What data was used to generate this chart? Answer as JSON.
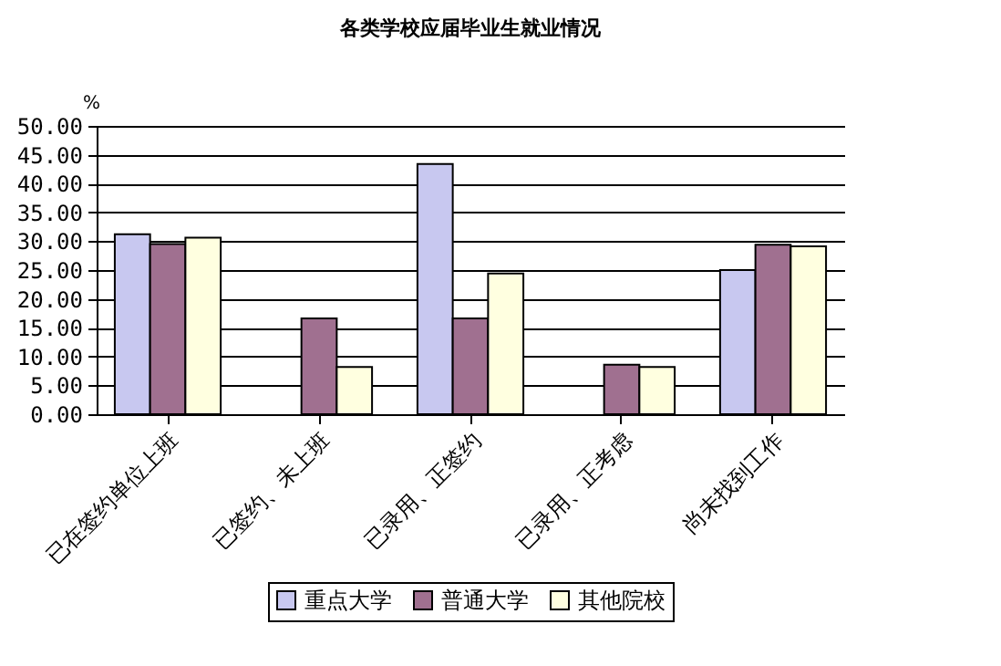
{
  "chart_data": {
    "type": "bar",
    "title": "各类学校应届毕业生就业情况",
    "ylabel": "%",
    "categories": [
      "已在签约单位上班",
      "已签约、未上班",
      "已录用、正签约",
      "已录用、正考虑",
      "尚未找到工作"
    ],
    "series": [
      {
        "name": "重点大学",
        "color": "#c8c8f0",
        "values": [
          31.2,
          null,
          43.4,
          null,
          25.0
        ]
      },
      {
        "name": "普通大学",
        "color": "#a07090",
        "values": [
          29.5,
          16.6,
          16.6,
          8.6,
          29.4
        ]
      },
      {
        "name": "其他院校",
        "color": "#ffffe0",
        "values": [
          30.6,
          8.2,
          24.4,
          8.2,
          29.1
        ]
      }
    ],
    "ylim": [
      0,
      50
    ],
    "yticks": [
      {
        "value": 0,
        "label": "0.00"
      },
      {
        "value": 5,
        "label": "5.00"
      },
      {
        "value": 10,
        "label": "10.00"
      },
      {
        "value": 15,
        "label": "15.00"
      },
      {
        "value": 20,
        "label": "20.00"
      },
      {
        "value": 25,
        "label": "25.00"
      },
      {
        "value": 30,
        "label": "30.00"
      },
      {
        "value": 35,
        "label": "35.00"
      },
      {
        "value": 40,
        "label": "40.00"
      },
      {
        "value": 45,
        "label": "45.00"
      },
      {
        "value": 50,
        "label": "50.00"
      }
    ],
    "grid": "y",
    "legend": "bottom"
  }
}
